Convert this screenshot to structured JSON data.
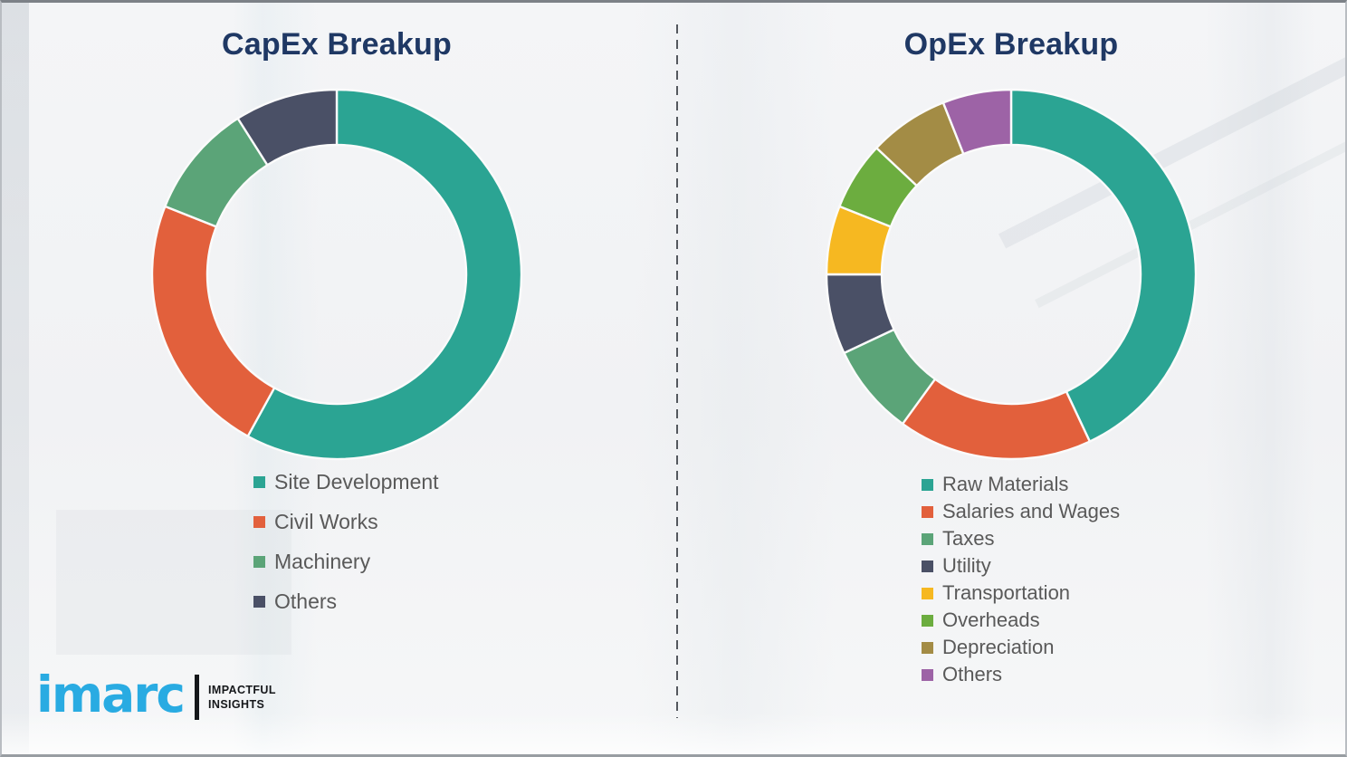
{
  "chart_data": [
    {
      "type": "pie",
      "subtype": "donut",
      "title": "CapEx Breakup",
      "categories": [
        "Site Development",
        "Civil Works",
        "Machinery",
        "Others"
      ],
      "values": [
        58,
        23,
        10,
        9
      ],
      "unit": "percent_estimated",
      "colors": [
        "#2BA493",
        "#E2603C",
        "#5BA478",
        "#4A5066"
      ],
      "start_angle_deg": 0,
      "direction": "clockwise",
      "legend_position": "below-left",
      "data_labels": false
    },
    {
      "type": "pie",
      "subtype": "donut",
      "title": "OpEx Breakup",
      "categories": [
        "Raw Materials",
        "Salaries and Wages",
        "Taxes",
        "Utility",
        "Transportation",
        "Overheads",
        "Depreciation",
        "Others"
      ],
      "values": [
        43,
        17,
        8,
        7,
        6,
        6,
        7,
        6
      ],
      "unit": "percent_estimated",
      "colors": [
        "#2BA493",
        "#E2603C",
        "#5BA478",
        "#4A5066",
        "#F6B821",
        "#6CAD3F",
        "#A38C45",
        "#9D63A6"
      ],
      "start_angle_deg": 0,
      "direction": "clockwise",
      "legend_position": "below-left",
      "data_labels": false
    }
  ],
  "divider": {
    "style": "vertical-dashed",
    "color": "#54585E"
  },
  "logo": {
    "brand": "imarc",
    "tagline_line1": "IMPACTFUL",
    "tagline_line2": "INSIGHTS",
    "brand_color": "#29ABE2"
  },
  "theme": {
    "title_color": "#1F3864",
    "legend_text_color": "#595959",
    "background": "#F2F3F5"
  }
}
